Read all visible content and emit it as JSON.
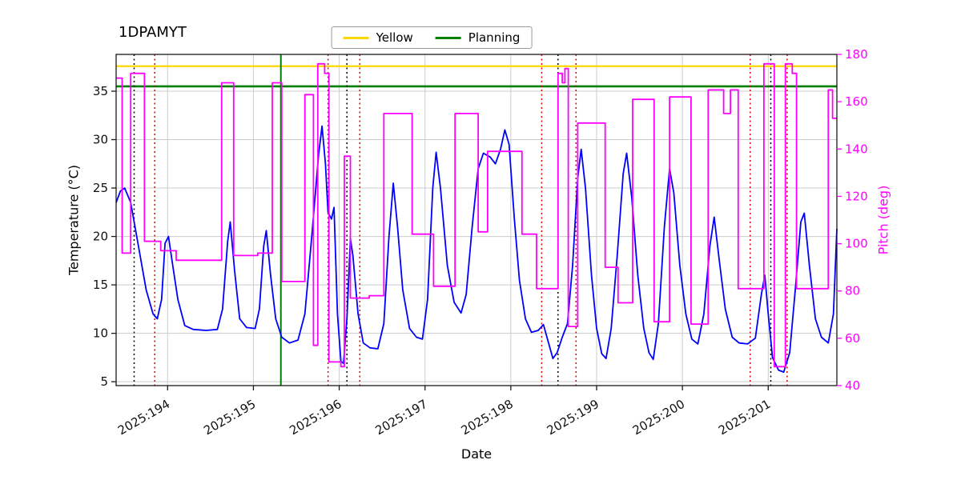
{
  "chart_data": {
    "type": "line",
    "title": "1DPAMYT",
    "xlabel": "Date",
    "ylabel_left": "Temperature (°C)",
    "ylabel_right": "Pitch (deg)",
    "xlim": [
      193.4,
      201.8
    ],
    "ylim_left": [
      4.6,
      38.8
    ],
    "ylim_right": [
      40,
      180
    ],
    "grid": true,
    "colors": {
      "temperature": "#0000ff",
      "pitch": "#ff00ff",
      "yellow": "#ffd700",
      "planning": "#008000",
      "grid": "#cccccc",
      "event_red": "#e00000",
      "event_black": "#000000",
      "spine": "#1a1a1a"
    },
    "xticks": [
      {
        "value": 194,
        "label": "2025:194"
      },
      {
        "value": 195,
        "label": "2025:195"
      },
      {
        "value": 196,
        "label": "2025:196"
      },
      {
        "value": 197,
        "label": "2025:197"
      },
      {
        "value": 198,
        "label": "2025:198"
      },
      {
        "value": 199,
        "label": "2025:199"
      },
      {
        "value": 200,
        "label": "2025:200"
      },
      {
        "value": 201,
        "label": "2025:201"
      }
    ],
    "yticks_left": [
      5,
      10,
      15,
      20,
      25,
      30,
      35
    ],
    "yticks_right": [
      40,
      60,
      80,
      100,
      120,
      140,
      160,
      180
    ],
    "legend": {
      "position": "top-center",
      "items": [
        {
          "label": "Yellow",
          "color": "#ffd700"
        },
        {
          "label": "Planning",
          "color": "#008000"
        }
      ]
    },
    "hlines": [
      {
        "name": "yellow-limit",
        "axis": "right",
        "value": 175,
        "color": "#ffd700",
        "width": 2.2
      },
      {
        "name": "planning-limit",
        "axis": "left",
        "value": 35.5,
        "color": "#008000",
        "width": 2.6
      }
    ],
    "vlines": [
      {
        "x": 193.61,
        "color": "#000000",
        "dash": "dotted",
        "width": 1.5
      },
      {
        "x": 193.85,
        "color": "#e00000",
        "dash": "dotted",
        "width": 1.5
      },
      {
        "x": 195.32,
        "color": "#008000",
        "dash": "solid",
        "width": 2
      },
      {
        "x": 195.87,
        "color": "#e00000",
        "dash": "dotted",
        "width": 1.5
      },
      {
        "x": 196.09,
        "color": "#000000",
        "dash": "dotted",
        "width": 1.5
      },
      {
        "x": 196.24,
        "color": "#e00000",
        "dash": "dotted",
        "width": 1.5
      },
      {
        "x": 198.36,
        "color": "#e00000",
        "dash": "dotted",
        "width": 1.5
      },
      {
        "x": 198.55,
        "color": "#000000",
        "dash": "dotted",
        "width": 1.5
      },
      {
        "x": 198.76,
        "color": "#e00000",
        "dash": "dotted",
        "width": 1.5
      },
      {
        "x": 200.79,
        "color": "#e00000",
        "dash": "dotted",
        "width": 1.5
      },
      {
        "x": 201.03,
        "color": "#000000",
        "dash": "dotted",
        "width": 1.5
      },
      {
        "x": 201.22,
        "color": "#e00000",
        "dash": "dotted",
        "width": 1.5
      }
    ],
    "series": [
      {
        "name": "Temperature",
        "axis": "left",
        "color": "#0000ff",
        "width": 1.8,
        "points": [
          [
            193.4,
            23.5
          ],
          [
            193.45,
            24.7
          ],
          [
            193.5,
            25.0
          ],
          [
            193.57,
            23.5
          ],
          [
            193.65,
            19.5
          ],
          [
            193.75,
            14.5
          ],
          [
            193.83,
            12.0
          ],
          [
            193.88,
            11.5
          ],
          [
            193.93,
            13.5
          ],
          [
            193.97,
            19.3
          ],
          [
            194.01,
            20.0
          ],
          [
            194.06,
            17.0
          ],
          [
            194.12,
            13.5
          ],
          [
            194.2,
            10.8
          ],
          [
            194.3,
            10.4
          ],
          [
            194.45,
            10.3
          ],
          [
            194.58,
            10.4
          ],
          [
            194.64,
            12.5
          ],
          [
            194.7,
            19.5
          ],
          [
            194.73,
            21.5
          ],
          [
            194.78,
            16.5
          ],
          [
            194.84,
            11.5
          ],
          [
            194.92,
            10.6
          ],
          [
            195.02,
            10.5
          ],
          [
            195.07,
            12.5
          ],
          [
            195.12,
            19.0
          ],
          [
            195.15,
            20.6
          ],
          [
            195.2,
            16.0
          ],
          [
            195.26,
            11.5
          ],
          [
            195.33,
            9.6
          ],
          [
            195.42,
            9.0
          ],
          [
            195.52,
            9.3
          ],
          [
            195.6,
            12.0
          ],
          [
            195.68,
            20.0
          ],
          [
            195.76,
            28.5
          ],
          [
            195.8,
            31.4
          ],
          [
            195.84,
            27.5
          ],
          [
            195.87,
            22.5
          ],
          [
            195.91,
            21.8
          ],
          [
            195.94,
            23.0
          ],
          [
            195.98,
            12.0
          ],
          [
            196.02,
            7.1
          ],
          [
            196.05,
            6.9
          ],
          [
            196.09,
            11.5
          ],
          [
            196.13,
            19.8
          ],
          [
            196.16,
            18.0
          ],
          [
            196.22,
            12.0
          ],
          [
            196.28,
            9.0
          ],
          [
            196.36,
            8.5
          ],
          [
            196.45,
            8.4
          ],
          [
            196.52,
            11.0
          ],
          [
            196.58,
            20.0
          ],
          [
            196.63,
            25.5
          ],
          [
            196.68,
            21.0
          ],
          [
            196.74,
            14.5
          ],
          [
            196.82,
            10.5
          ],
          [
            196.9,
            9.6
          ],
          [
            196.97,
            9.4
          ],
          [
            197.03,
            13.5
          ],
          [
            197.09,
            25.0
          ],
          [
            197.13,
            28.7
          ],
          [
            197.18,
            25.0
          ],
          [
            197.26,
            17.0
          ],
          [
            197.34,
            13.2
          ],
          [
            197.42,
            12.1
          ],
          [
            197.48,
            14.0
          ],
          [
            197.55,
            21.0
          ],
          [
            197.62,
            27.0
          ],
          [
            197.68,
            28.6
          ],
          [
            197.76,
            28.2
          ],
          [
            197.82,
            27.5
          ],
          [
            197.88,
            29.0
          ],
          [
            197.93,
            31.0
          ],
          [
            197.98,
            29.5
          ],
          [
            198.04,
            22.0
          ],
          [
            198.1,
            15.5
          ],
          [
            198.17,
            11.5
          ],
          [
            198.24,
            10.1
          ],
          [
            198.32,
            10.3
          ],
          [
            198.38,
            10.9
          ],
          [
            198.44,
            9.0
          ],
          [
            198.49,
            7.4
          ],
          [
            198.54,
            8.0
          ],
          [
            198.6,
            9.6
          ],
          [
            198.66,
            11.0
          ],
          [
            198.72,
            17.0
          ],
          [
            198.78,
            26.0
          ],
          [
            198.82,
            29.0
          ],
          [
            198.87,
            25.0
          ],
          [
            198.94,
            16.0
          ],
          [
            199.0,
            10.5
          ],
          [
            199.06,
            7.9
          ],
          [
            199.11,
            7.4
          ],
          [
            199.17,
            10.5
          ],
          [
            199.24,
            18.0
          ],
          [
            199.31,
            26.5
          ],
          [
            199.35,
            28.6
          ],
          [
            199.41,
            24.0
          ],
          [
            199.48,
            16.0
          ],
          [
            199.55,
            10.5
          ],
          [
            199.61,
            8.0
          ],
          [
            199.66,
            7.3
          ],
          [
            199.72,
            11.0
          ],
          [
            199.79,
            21.0
          ],
          [
            199.85,
            27.0
          ],
          [
            199.9,
            24.5
          ],
          [
            199.97,
            17.0
          ],
          [
            200.04,
            12.0
          ],
          [
            200.11,
            9.4
          ],
          [
            200.18,
            8.9
          ],
          [
            200.25,
            12.0
          ],
          [
            200.32,
            19.0
          ],
          [
            200.37,
            22.0
          ],
          [
            200.43,
            17.5
          ],
          [
            200.5,
            12.5
          ],
          [
            200.58,
            9.6
          ],
          [
            200.66,
            9.0
          ],
          [
            200.76,
            8.9
          ],
          [
            200.85,
            9.5
          ],
          [
            200.92,
            14.0
          ],
          [
            200.96,
            16.0
          ],
          [
            201.0,
            12.0
          ],
          [
            201.05,
            7.5
          ],
          [
            201.12,
            6.2
          ],
          [
            201.18,
            6.0
          ],
          [
            201.25,
            8.0
          ],
          [
            201.32,
            15.0
          ],
          [
            201.38,
            21.5
          ],
          [
            201.42,
            22.4
          ],
          [
            201.48,
            17.0
          ],
          [
            201.55,
            11.5
          ],
          [
            201.62,
            9.6
          ],
          [
            201.7,
            9.0
          ],
          [
            201.76,
            12.0
          ],
          [
            201.8,
            20.8
          ]
        ]
      },
      {
        "name": "Pitch",
        "axis": "right",
        "color": "#ff00ff",
        "width": 1.8,
        "points": [
          [
            193.4,
            170
          ],
          [
            193.47,
            170
          ],
          [
            193.47,
            96
          ],
          [
            193.57,
            96
          ],
          [
            193.57,
            172
          ],
          [
            193.73,
            172
          ],
          [
            193.73,
            101
          ],
          [
            193.92,
            101
          ],
          [
            193.92,
            97
          ],
          [
            194.1,
            97
          ],
          [
            194.1,
            93
          ],
          [
            194.63,
            93
          ],
          [
            194.63,
            168
          ],
          [
            194.77,
            168
          ],
          [
            194.77,
            95
          ],
          [
            195.05,
            95
          ],
          [
            195.05,
            96
          ],
          [
            195.22,
            96
          ],
          [
            195.22,
            168
          ],
          [
            195.33,
            168
          ],
          [
            195.33,
            84
          ],
          [
            195.6,
            84
          ],
          [
            195.6,
            163
          ],
          [
            195.7,
            163
          ],
          [
            195.7,
            57
          ],
          [
            195.75,
            57
          ],
          [
            195.75,
            176
          ],
          [
            195.83,
            176
          ],
          [
            195.83,
            172
          ],
          [
            195.88,
            172
          ],
          [
            195.88,
            50
          ],
          [
            196.02,
            50
          ],
          [
            196.02,
            48
          ],
          [
            196.06,
            48
          ],
          [
            196.06,
            137
          ],
          [
            196.13,
            137
          ],
          [
            196.13,
            77
          ],
          [
            196.35,
            77
          ],
          [
            196.35,
            78
          ],
          [
            196.52,
            78
          ],
          [
            196.52,
            155
          ],
          [
            196.85,
            155
          ],
          [
            196.85,
            104
          ],
          [
            197.1,
            104
          ],
          [
            197.1,
            82
          ],
          [
            197.35,
            82
          ],
          [
            197.35,
            155
          ],
          [
            197.62,
            155
          ],
          [
            197.62,
            105
          ],
          [
            197.73,
            105
          ],
          [
            197.73,
            139
          ],
          [
            198.13,
            139
          ],
          [
            198.13,
            104
          ],
          [
            198.3,
            104
          ],
          [
            198.3,
            81
          ],
          [
            198.55,
            81
          ],
          [
            198.55,
            172
          ],
          [
            198.6,
            172
          ],
          [
            198.6,
            168
          ],
          [
            198.63,
            168
          ],
          [
            198.63,
            174
          ],
          [
            198.67,
            174
          ],
          [
            198.67,
            65
          ],
          [
            198.78,
            65
          ],
          [
            198.78,
            151
          ],
          [
            199.1,
            151
          ],
          [
            199.1,
            90
          ],
          [
            199.25,
            90
          ],
          [
            199.25,
            75
          ],
          [
            199.42,
            75
          ],
          [
            199.42,
            161
          ],
          [
            199.67,
            161
          ],
          [
            199.67,
            67
          ],
          [
            199.85,
            67
          ],
          [
            199.85,
            162
          ],
          [
            200.1,
            162
          ],
          [
            200.1,
            66
          ],
          [
            200.3,
            66
          ],
          [
            200.3,
            165
          ],
          [
            200.48,
            165
          ],
          [
            200.48,
            155
          ],
          [
            200.56,
            155
          ],
          [
            200.56,
            165
          ],
          [
            200.65,
            165
          ],
          [
            200.65,
            81
          ],
          [
            200.95,
            81
          ],
          [
            200.95,
            176
          ],
          [
            201.07,
            176
          ],
          [
            201.07,
            48
          ],
          [
            201.2,
            48
          ],
          [
            201.2,
            176
          ],
          [
            201.28,
            176
          ],
          [
            201.28,
            172
          ],
          [
            201.33,
            172
          ],
          [
            201.33,
            81
          ],
          [
            201.7,
            81
          ],
          [
            201.7,
            165
          ],
          [
            201.75,
            165
          ],
          [
            201.75,
            153
          ],
          [
            201.8,
            153
          ]
        ]
      }
    ]
  }
}
